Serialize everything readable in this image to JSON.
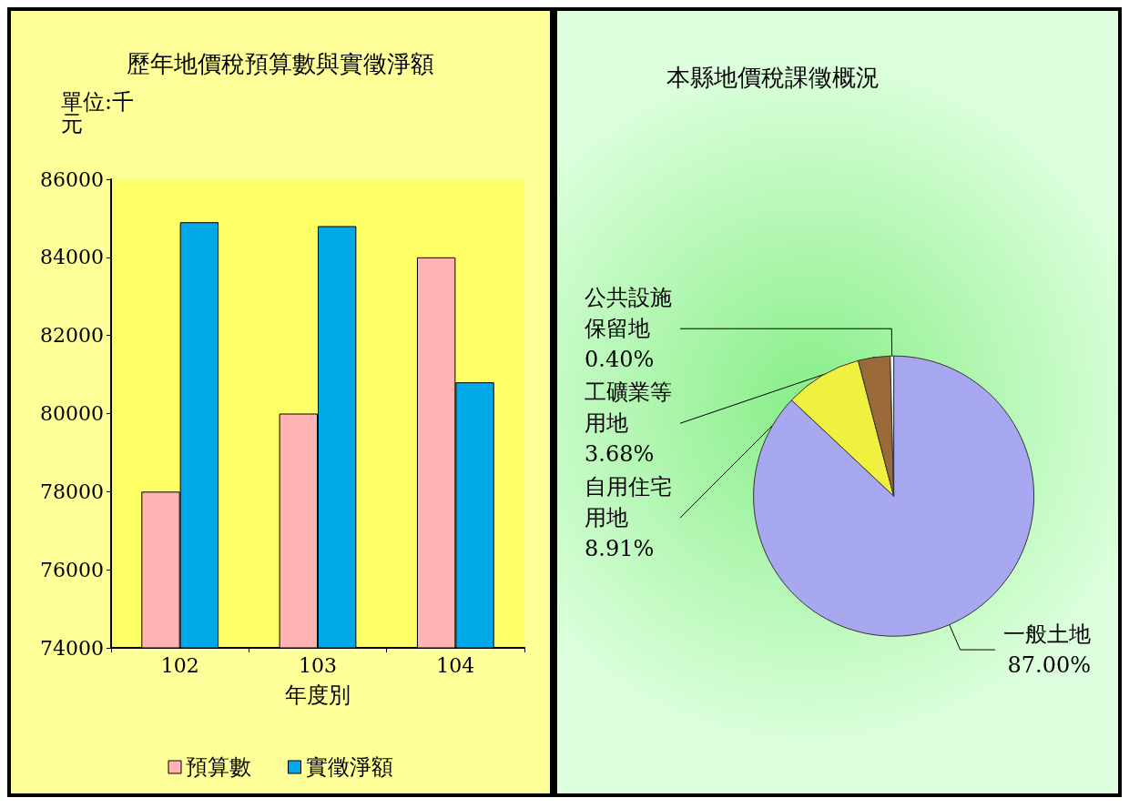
{
  "chart_data": [
    {
      "type": "bar",
      "title": "歷年地價稅預算數與實徵淨額",
      "ylabel": "單位:千元",
      "xlabel": "年度別",
      "categories": [
        "102",
        "103",
        "104"
      ],
      "series": [
        {
          "name": "預算數",
          "color": "#ffb3b3",
          "values": [
            78000,
            80000,
            84000
          ]
        },
        {
          "name": "實徵淨額",
          "color": "#00a8e8",
          "values": [
            84900,
            84800,
            80800
          ]
        }
      ],
      "ylim": [
        74000,
        86000
      ],
      "yticks": [
        74000,
        76000,
        78000,
        80000,
        82000,
        84000,
        86000
      ],
      "grid": false,
      "legend": "bottom"
    },
    {
      "type": "pie",
      "title": "本縣地價稅課徵概況",
      "categories": [
        "一般土地",
        "自用住宅用地",
        "工礦業等用地",
        "公共設施保留地"
      ],
      "values": [
        87.0,
        8.91,
        3.68,
        0.4
      ],
      "value_labels": [
        "87.00%",
        "8.91%",
        "3.68%",
        "0.40%"
      ],
      "colors": [
        "#a8a8f0",
        "#f0f040",
        "#9a6a3a",
        "#e8f8f0"
      ]
    }
  ]
}
